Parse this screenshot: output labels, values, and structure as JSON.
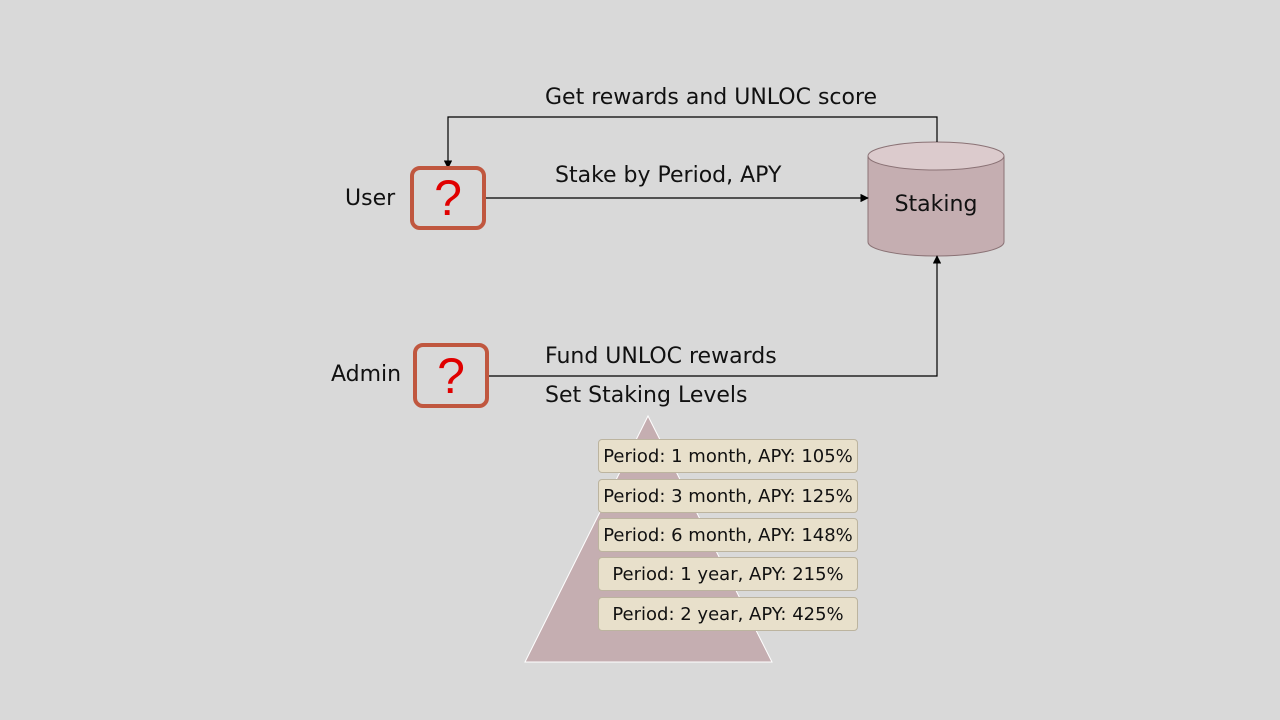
{
  "actors": {
    "user": {
      "label": "User",
      "icon": "question-mark-icon",
      "glyph": "?"
    },
    "admin": {
      "label": "Admin",
      "icon": "question-mark-icon",
      "glyph": "?"
    }
  },
  "store": {
    "label": "Staking"
  },
  "flows": {
    "rewards": "Get rewards and UNLOC score",
    "stake": "Stake by Period, APY",
    "fund": "Fund UNLOC rewards",
    "levels": "Set Staking Levels"
  },
  "staking_levels": [
    "Period: 1 month, APY: 105%",
    "Period: 3 month, APY: 125%",
    "Period: 6 month, APY: 148%",
    "Period: 1 year, APY: 215%",
    "Period: 2 year, APY: 425%"
  ],
  "colors": {
    "background": "#d9d9d9",
    "actor_border": "#c0573f",
    "question_mark": "#e00000",
    "cylinder": "#c5aeb1",
    "pyramid": "#c5aeb1",
    "level_fill": "#e8e0cb"
  }
}
